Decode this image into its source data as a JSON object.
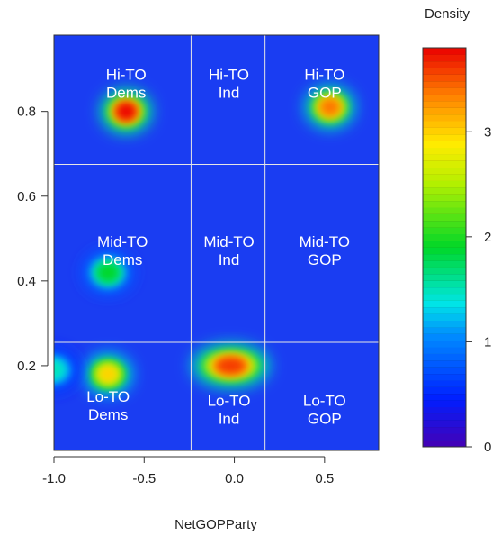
{
  "chart_data": {
    "type": "heatmap",
    "title": "",
    "xlabel": "NetGOPParty",
    "ylabel": "",
    "xlim": [
      -1.0,
      0.8
    ],
    "ylim": [
      0.0,
      0.98
    ],
    "x_ticks": [
      "-1.0",
      "-0.5",
      "0.0",
      "0.5"
    ],
    "x_tick_values": [
      -1.0,
      -0.5,
      0.0,
      0.5
    ],
    "y_ticks": [
      "0.2",
      "0.4",
      "0.6",
      "0.8"
    ],
    "y_tick_values": [
      0.2,
      0.4,
      0.6,
      0.8
    ],
    "colorbar": {
      "title": "Density",
      "ticks": [
        "0",
        "1",
        "2",
        "3"
      ],
      "tick_values": [
        0,
        1,
        2,
        3
      ],
      "range": [
        0,
        3.8
      ]
    },
    "divider_lines": {
      "x": [
        -0.24,
        0.17
      ],
      "y": [
        0.255,
        0.675
      ],
      "color": "#e6e6e6"
    },
    "density_peaks": [
      {
        "x": -0.6,
        "y": 0.8,
        "value": 3.8
      },
      {
        "x": 0.53,
        "y": 0.81,
        "value": 3.4
      },
      {
        "x": -0.7,
        "y": 0.42,
        "value": 1.9
      },
      {
        "x": -0.7,
        "y": 0.18,
        "value": 3.0
      },
      {
        "x": -0.02,
        "y": 0.2,
        "value": 3.6
      },
      {
        "x": -1.0,
        "y": 0.19,
        "value": 1.5
      }
    ],
    "region_labels": [
      {
        "line1": "Hi-TO",
        "line2": "Dems",
        "x": -0.6,
        "y": 0.875
      },
      {
        "line1": "Hi-TO",
        "line2": "Ind",
        "x": -0.03,
        "y": 0.875
      },
      {
        "line1": "Hi-TO",
        "line2": "GOP",
        "x": 0.5,
        "y": 0.875
      },
      {
        "line1": "Mid-TO",
        "line2": "Dems",
        "x": -0.62,
        "y": 0.48
      },
      {
        "line1": "Mid-TO",
        "line2": "Ind",
        "x": -0.03,
        "y": 0.48
      },
      {
        "line1": "Mid-TO",
        "line2": "GOP",
        "x": 0.5,
        "y": 0.48
      },
      {
        "line1": "Lo-TO",
        "line2": "Dems",
        "x": -0.7,
        "y": 0.115
      },
      {
        "line1": "Lo-TO",
        "line2": "Ind",
        "x": -0.03,
        "y": 0.105
      },
      {
        "line1": "Lo-TO",
        "line2": "GOP",
        "x": 0.5,
        "y": 0.105
      }
    ]
  }
}
